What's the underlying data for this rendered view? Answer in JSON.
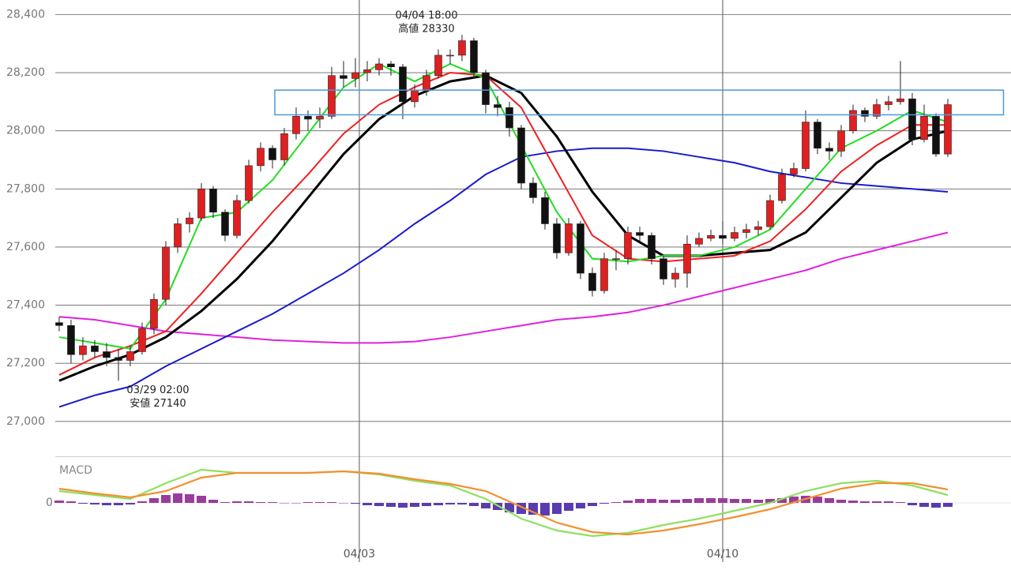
{
  "chart_data": [
    {
      "type": "candlestick",
      "xlim": [
        -0.33,
        80
      ],
      "xticks": [
        {
          "value": 25.33,
          "label": "04/03"
        },
        {
          "value": 56,
          "label": "04/10"
        }
      ],
      "ylim": [
        26880,
        28450
      ],
      "yticks": [
        {
          "value": 27000,
          "label": "27,000"
        },
        {
          "value": 27200,
          "label": "27,200"
        },
        {
          "value": 27400,
          "label": "27,400"
        },
        {
          "value": 27600,
          "label": "27,600"
        },
        {
          "value": 27800,
          "label": "27,800"
        },
        {
          "value": 28000,
          "label": "28,000"
        },
        {
          "value": 28200,
          "label": "28,200"
        },
        {
          "value": 28400,
          "label": "28,400"
        }
      ],
      "grid": true,
      "up_color": "#e02020",
      "down_color": "#111111",
      "candles": [
        [
          27340,
          27360,
          27310,
          27330
        ],
        [
          27330,
          27350,
          27200,
          27230
        ],
        [
          27230,
          27290,
          27210,
          27260
        ],
        [
          27260,
          27280,
          27220,
          27240
        ],
        [
          27240,
          27270,
          27190,
          27220
        ],
        [
          27220,
          27250,
          27140,
          27210
        ],
        [
          27210,
          27260,
          27190,
          27240
        ],
        [
          27240,
          27340,
          27230,
          27320
        ],
        [
          27320,
          27440,
          27300,
          27420
        ],
        [
          27420,
          27620,
          27400,
          27600
        ],
        [
          27600,
          27700,
          27580,
          27680
        ],
        [
          27680,
          27720,
          27650,
          27700
        ],
        [
          27700,
          27820,
          27690,
          27800
        ],
        [
          27800,
          27810,
          27700,
          27720
        ],
        [
          27720,
          27730,
          27620,
          27640
        ],
        [
          27640,
          27780,
          27630,
          27760
        ],
        [
          27760,
          27900,
          27750,
          27880
        ],
        [
          27880,
          27960,
          27860,
          27940
        ],
        [
          27940,
          27950,
          27870,
          27900
        ],
        [
          27900,
          28010,
          27880,
          27990
        ],
        [
          27990,
          28080,
          27970,
          28050
        ],
        [
          28050,
          28070,
          28000,
          28040
        ],
        [
          28040,
          28080,
          28010,
          28050
        ],
        [
          28050,
          28220,
          28040,
          28190
        ],
        [
          28190,
          28240,
          28150,
          28180
        ],
        [
          28180,
          28250,
          28150,
          28200
        ],
        [
          28200,
          28240,
          28170,
          28210
        ],
        [
          28210,
          28250,
          28190,
          28230
        ],
        [
          28230,
          28240,
          28190,
          28220
        ],
        [
          28220,
          28230,
          28040,
          28100
        ],
        [
          28100,
          28160,
          28080,
          28140
        ],
        [
          28140,
          28210,
          28120,
          28190
        ],
        [
          28190,
          28280,
          28180,
          28260
        ],
        [
          28260,
          28280,
          28230,
          28260
        ],
        [
          28260,
          28330,
          28240,
          28310
        ],
        [
          28310,
          28320,
          28180,
          28200
        ],
        [
          28200,
          28210,
          28060,
          28090
        ],
        [
          28090,
          28120,
          28050,
          28080
        ],
        [
          28080,
          28100,
          27980,
          28010
        ],
        [
          28010,
          28020,
          27800,
          27820
        ],
        [
          27820,
          27840,
          27750,
          27770
        ],
        [
          27770,
          27790,
          27660,
          27680
        ],
        [
          27680,
          27700,
          27560,
          27580
        ],
        [
          27580,
          27700,
          27570,
          27680
        ],
        [
          27680,
          27690,
          27490,
          27510
        ],
        [
          27510,
          27530,
          27430,
          27450
        ],
        [
          27450,
          27580,
          27440,
          27560
        ],
        [
          27560,
          27590,
          27520,
          27560
        ],
        [
          27560,
          27670,
          27540,
          27650
        ],
        [
          27650,
          27670,
          27620,
          27640
        ],
        [
          27640,
          27650,
          27540,
          27560
        ],
        [
          27560,
          27570,
          27470,
          27490
        ],
        [
          27490,
          27530,
          27460,
          27510
        ],
        [
          27510,
          27640,
          27460,
          27610
        ],
        [
          27610,
          27650,
          27600,
          27630
        ],
        [
          27630,
          27660,
          27620,
          27640
        ],
        [
          27640,
          27690,
          27610,
          27630
        ],
        [
          27630,
          27670,
          27620,
          27650
        ],
        [
          27650,
          27680,
          27630,
          27660
        ],
        [
          27660,
          27690,
          27640,
          27670
        ],
        [
          27670,
          27780,
          27660,
          27760
        ],
        [
          27760,
          27870,
          27750,
          27850
        ],
        [
          27850,
          27890,
          27840,
          27870
        ],
        [
          27870,
          28070,
          27860,
          28030
        ],
        [
          28030,
          28040,
          27920,
          27940
        ],
        [
          27940,
          27960,
          27900,
          27930
        ],
        [
          27930,
          28020,
          27910,
          28000
        ],
        [
          28000,
          28090,
          27990,
          28070
        ],
        [
          28070,
          28080,
          28030,
          28050
        ],
        [
          28050,
          28110,
          28040,
          28090
        ],
        [
          28090,
          28120,
          28070,
          28100
        ],
        [
          28100,
          28240,
          28090,
          28110
        ],
        [
          28110,
          28130,
          27950,
          27970
        ],
        [
          27970,
          28090,
          27960,
          28050
        ],
        [
          28050,
          28060,
          27910,
          27920
        ],
        [
          27920,
          28110,
          27910,
          28090
        ]
      ],
      "line_x": [
        0,
        3,
        6,
        9,
        12,
        15,
        18,
        21,
        24,
        27,
        30,
        33,
        36,
        39,
        42,
        45,
        48,
        51,
        54,
        57,
        60,
        63,
        66,
        69,
        72,
        75
      ],
      "series": [
        {
          "color": "#e020e0",
          "values": [
            27360,
            27350,
            27330,
            27310,
            27300,
            27290,
            27280,
            27275,
            27270,
            27270,
            27275,
            27290,
            27310,
            27330,
            27350,
            27360,
            27375,
            27400,
            27430,
            27460,
            27490,
            27520,
            27560,
            27590,
            27620,
            27650
          ]
        },
        {
          "color": "#1a1acc",
          "values": [
            27050,
            27090,
            27120,
            27190,
            27250,
            27310,
            27370,
            27440,
            27510,
            27590,
            27680,
            27760,
            27850,
            27910,
            27930,
            27940,
            27940,
            27930,
            27910,
            27890,
            27860,
            27840,
            27820,
            27810,
            27800,
            27790
          ]
        },
        {
          "color": "#000000",
          "values": [
            27140,
            27190,
            27230,
            27290,
            27380,
            27490,
            27620,
            27770,
            27920,
            28040,
            28120,
            28170,
            28190,
            28130,
            27980,
            27790,
            27640,
            27570,
            27570,
            27580,
            27590,
            27650,
            27770,
            27890,
            27970,
            28000
          ]
        },
        {
          "color": "#ee2020",
          "values": [
            27160,
            27220,
            27260,
            27310,
            27440,
            27580,
            27720,
            27850,
            27990,
            28090,
            28150,
            28200,
            28190,
            28080,
            27860,
            27640,
            27560,
            27550,
            27560,
            27570,
            27620,
            27730,
            27860,
            27950,
            28020,
            28020
          ]
        },
        {
          "color": "#22dd22",
          "values": [
            27290,
            27270,
            27250,
            27420,
            27700,
            27720,
            27830,
            27990,
            28150,
            28230,
            28170,
            28230,
            28180,
            27950,
            27720,
            27560,
            27550,
            27570,
            27570,
            27600,
            27660,
            27800,
            27940,
            28000,
            28070,
            28030
          ]
        }
      ],
      "highlight": {
        "x": [
          18.2,
          79.7
        ],
        "y": [
          28055,
          28140
        ],
        "color": "#4a9ad8"
      },
      "annotations": [
        {
          "lines": [
            "04/04 18:00",
            "高値 28330"
          ],
          "x": 34,
          "y": 28330,
          "position": "above"
        },
        {
          "lines": [
            "03/29 02:00",
            "安値 27140"
          ],
          "x": 5,
          "y": 27140,
          "position": "below"
        }
      ]
    },
    {
      "type": "macd",
      "label": "MACD",
      "ylim": [
        -80,
        55
      ],
      "yticks": [
        0
      ],
      "line_x": [
        0,
        3,
        6,
        9,
        12,
        15,
        18,
        21,
        24,
        27,
        30,
        33,
        36,
        39,
        42,
        45,
        48,
        51,
        54,
        57,
        60,
        63,
        66,
        69,
        72,
        75
      ],
      "series": [
        {
          "color": "#8fe060",
          "values": [
            15,
            10,
            5,
            25,
            42,
            38,
            38,
            38,
            40,
            36,
            28,
            22,
            5,
            -20,
            -35,
            -42,
            -38,
            -28,
            -20,
            -10,
            0,
            15,
            25,
            28,
            22,
            10
          ]
        },
        {
          "color": "#f39030",
          "values": [
            18,
            12,
            7,
            15,
            32,
            38,
            38,
            38,
            40,
            37,
            30,
            24,
            15,
            -5,
            -25,
            -37,
            -40,
            -35,
            -27,
            -18,
            -8,
            5,
            18,
            25,
            25,
            17
          ]
        }
      ],
      "histogram": {
        "up_color": "#9a3c9a",
        "down_color": "#5a3cb0",
        "values": [
          3,
          2,
          -1,
          -2,
          -3,
          -3,
          -2,
          2,
          6,
          10,
          12,
          11,
          9,
          4,
          1,
          2,
          2,
          1,
          1,
          0,
          0,
          1,
          1,
          1,
          0,
          -1,
          -3,
          -4,
          -5,
          -6,
          -5,
          -4,
          -3,
          -2,
          -2,
          -4,
          -7,
          -9,
          -12,
          -14,
          -15,
          -16,
          -14,
          -10,
          -7,
          -4,
          -1,
          1,
          3,
          5,
          5,
          4,
          4,
          5,
          6,
          6,
          6,
          5,
          5,
          4,
          5,
          6,
          8,
          9,
          8,
          6,
          4,
          3,
          2,
          2,
          2,
          1,
          -3,
          -5,
          -6,
          -5
        ]
      }
    }
  ]
}
